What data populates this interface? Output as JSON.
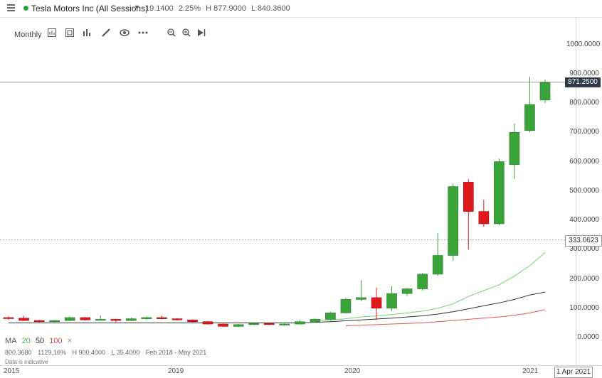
{
  "header": {
    "instrument": "Tesla Motors Inc (All Sessions)",
    "change": "19.1400",
    "change_pct": "2.25%",
    "high": "H 877.9000",
    "low": "L 840.3600"
  },
  "toolbar": {
    "interval": "Monthly",
    "icons": [
      "candles-settings-icon",
      "compare-icon",
      "chart-type-icon",
      "draw-icon",
      "visibility-icon",
      "more-icon",
      "zoom-out-icon",
      "zoom-in-icon",
      "play-icon"
    ]
  },
  "price_badges": {
    "last": "871.2500",
    "crosshair": "333.0623"
  },
  "ma_legend": {
    "label": "MA",
    "p1": "20",
    "p2": "50",
    "p3": "100",
    "close": "×"
  },
  "stats": {
    "value": "800.3680",
    "pct": "1129.16%",
    "high": "H 900.4000",
    "low": "L 35.4000",
    "range": "Feb 2018 - May 2021"
  },
  "note": "Data is indicative",
  "date_box": "1 Apr 2021",
  "colors": {
    "up": "#3aa43a",
    "down": "#e0181d",
    "ma20": "#7ccd7c",
    "ma50": "#333333",
    "ma100": "#e45656",
    "grid": "#cccccc"
  },
  "chart_data": {
    "type": "candlestick",
    "y_axis_ticks": [
      "1000.0000",
      "900.0000",
      "800.0000",
      "700.0000",
      "600.0000",
      "500.0000",
      "400.0000",
      "300.0000",
      "200.0000",
      "100.0000",
      "0.0000"
    ],
    "x_axis_ticks": [
      "2015",
      "2019",
      "2020",
      "2021"
    ],
    "ylim": [
      0,
      1000
    ],
    "candles": [
      [
        68,
        72,
        60,
        66
      ],
      [
        66,
        74,
        56,
        58
      ],
      [
        58,
        60,
        50,
        54
      ],
      [
        54,
        60,
        52,
        58
      ],
      [
        58,
        72,
        56,
        68
      ],
      [
        68,
        70,
        58,
        60
      ],
      [
        60,
        76,
        58,
        62
      ],
      [
        62,
        64,
        52,
        58
      ],
      [
        58,
        68,
        56,
        64
      ],
      [
        64,
        72,
        60,
        68
      ],
      [
        68,
        74,
        62,
        64
      ],
      [
        64,
        66,
        58,
        60
      ],
      [
        60,
        62,
        52,
        54
      ],
      [
        54,
        56,
        44,
        46
      ],
      [
        46,
        48,
        36,
        38
      ],
      [
        38,
        46,
        36,
        44
      ],
      [
        44,
        52,
        42,
        48
      ],
      [
        48,
        50,
        42,
        44
      ],
      [
        44,
        48,
        40,
        46
      ],
      [
        46,
        60,
        44,
        54
      ],
      [
        54,
        66,
        52,
        62
      ],
      [
        62,
        88,
        58,
        84
      ],
      [
        84,
        136,
        82,
        130
      ],
      [
        130,
        196,
        124,
        136
      ],
      [
        136,
        170,
        60,
        100
      ],
      [
        100,
        176,
        90,
        150
      ],
      [
        150,
        168,
        142,
        166
      ],
      [
        166,
        220,
        160,
        216
      ],
      [
        216,
        356,
        210,
        280
      ],
      [
        280,
        525,
        262,
        515
      ],
      [
        530,
        540,
        300,
        430
      ],
      [
        430,
        470,
        378,
        388
      ],
      [
        388,
        610,
        382,
        600
      ],
      [
        590,
        730,
        540,
        700
      ],
      [
        706,
        890,
        700,
        795
      ],
      [
        810,
        880,
        800,
        871
      ]
    ],
    "moving_averages": [
      {
        "name": "20",
        "values": [
          null,
          null,
          null,
          null,
          null,
          null,
          null,
          null,
          null,
          null,
          null,
          null,
          null,
          null,
          null,
          null,
          null,
          null,
          null,
          null,
          58,
          60,
          64,
          70,
          74,
          78,
          84,
          90,
          100,
          115,
          140,
          160,
          180,
          210,
          245,
          290
        ]
      },
      {
        "name": "50",
        "values": [
          50,
          50,
          50,
          50,
          50,
          50,
          50,
          50,
          50,
          50,
          50,
          50,
          50,
          50,
          50,
          50,
          50,
          50,
          50,
          50,
          52,
          54,
          57,
          60,
          63,
          66,
          70,
          74,
          80,
          88,
          98,
          108,
          118,
          130,
          145,
          155
        ]
      },
      {
        "name": "100",
        "values": [
          null,
          null,
          null,
          null,
          null,
          null,
          null,
          null,
          null,
          null,
          null,
          null,
          null,
          null,
          null,
          null,
          null,
          null,
          null,
          null,
          null,
          null,
          40,
          42,
          44,
          46,
          48,
          50,
          54,
          58,
          62,
          66,
          70,
          76,
          84,
          95
        ]
      }
    ],
    "last_price": 871.25,
    "crosshair_price": 333.0623
  }
}
